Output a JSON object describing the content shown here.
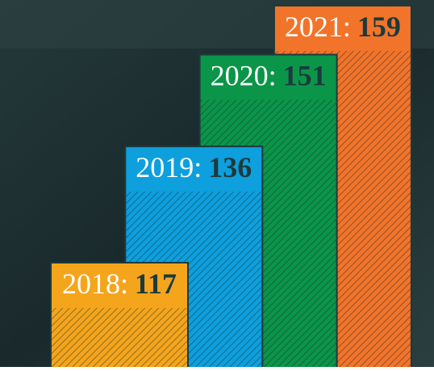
{
  "chart_data": {
    "type": "bar",
    "categories": [
      "2018:",
      "2019:",
      "2020:",
      "2021:"
    ],
    "values": [
      117,
      136,
      151,
      159
    ],
    "colors": [
      "#f5a51c",
      "#0e9fdd",
      "#0b9549",
      "#f2742a"
    ]
  }
}
